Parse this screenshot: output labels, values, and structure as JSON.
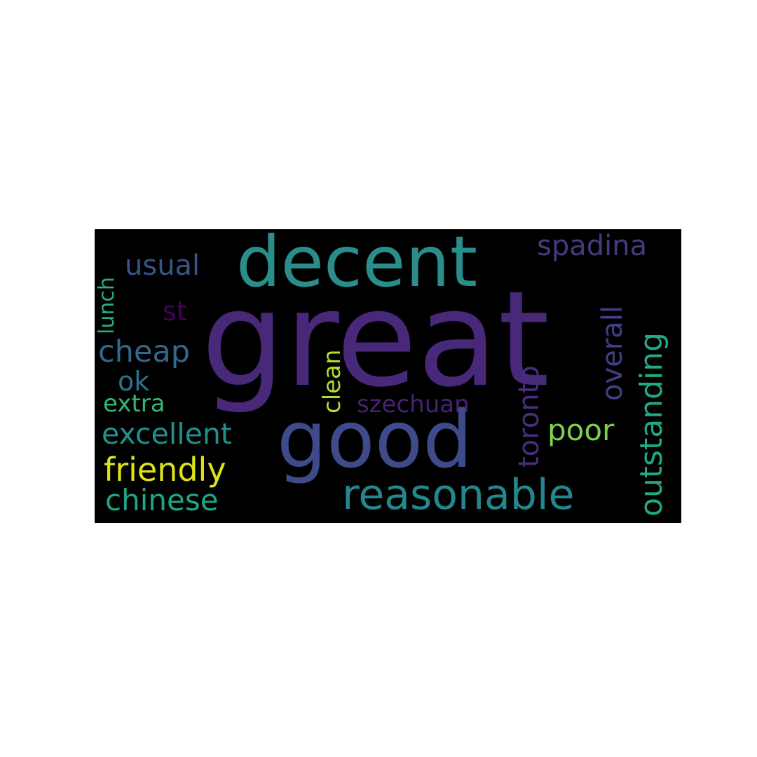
{
  "word_cloud": {
    "background": "#000000",
    "words": [
      {
        "key": "great",
        "text": "great",
        "color": "#482878"
      },
      {
        "key": "decent",
        "text": "decent",
        "color": "#2a8d8a"
      },
      {
        "key": "good",
        "text": "good",
        "color": "#3e4a89"
      },
      {
        "key": "reasonable",
        "text": "reasonable",
        "color": "#23888e"
      },
      {
        "key": "outstanding",
        "text": "outstanding",
        "color": "#22a884"
      },
      {
        "key": "spadina",
        "text": "spadina",
        "color": "#46397f"
      },
      {
        "key": "usual",
        "text": "usual",
        "color": "#3b528b"
      },
      {
        "key": "friendly",
        "text": "friendly",
        "color": "#dce319"
      },
      {
        "key": "chinese",
        "text": "chinese",
        "color": "#20a486"
      },
      {
        "key": "excellent",
        "text": "excellent",
        "color": "#21918c"
      },
      {
        "key": "cheap",
        "text": "cheap",
        "color": "#31688e"
      },
      {
        "key": "poor",
        "text": "poor",
        "color": "#7ad151"
      },
      {
        "key": "toronto",
        "text": "toronto",
        "color": "#472d7b"
      },
      {
        "key": "overall",
        "text": "overall",
        "color": "#433e85"
      },
      {
        "key": "szechuan",
        "text": "szechuan",
        "color": "#482173"
      },
      {
        "key": "clean",
        "text": "clean",
        "color": "#b5de2b"
      },
      {
        "key": "extra",
        "text": "extra",
        "color": "#35b779"
      },
      {
        "key": "ok",
        "text": "ok",
        "color": "#2c728e"
      },
      {
        "key": "st",
        "text": "st",
        "color": "#440154"
      },
      {
        "key": "lunch",
        "text": "lunch",
        "color": "#28ae80"
      }
    ]
  }
}
